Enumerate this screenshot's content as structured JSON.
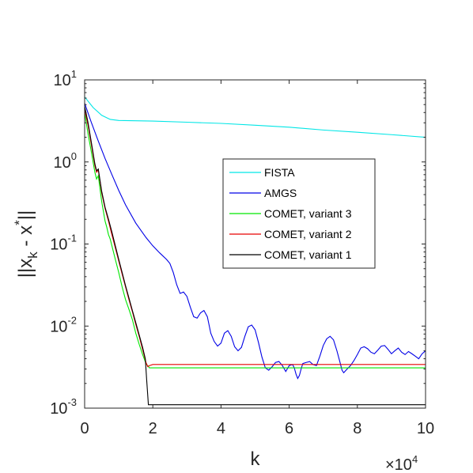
{
  "chart_data": {
    "type": "line",
    "title": "",
    "xlabel": "k",
    "ylabel": "||x_k - x^*||",
    "x_multiplier": "×10^4",
    "x_exponent": "4",
    "xlim": [
      0,
      100000
    ],
    "ylim": [
      0.001,
      10
    ],
    "yscale": "log",
    "x_ticks": [
      0,
      20000,
      40000,
      60000,
      80000,
      100000
    ],
    "x_tick_labels": [
      "0",
      "2",
      "4",
      "6",
      "8",
      "10"
    ],
    "y_ticks": [
      0.001,
      0.01,
      0.1,
      1,
      10
    ],
    "y_tick_labels": [
      {
        "base": "10",
        "exp": "-3"
      },
      {
        "base": "10",
        "exp": "-2"
      },
      {
        "base": "10",
        "exp": "-1"
      },
      {
        "base": "10",
        "exp": "0"
      },
      {
        "base": "10",
        "exp": "1"
      }
    ],
    "grid": false,
    "legend_position": "center-right",
    "series": [
      {
        "name": "FISTA",
        "color": "#00e6e6",
        "points": [
          [
            0,
            6.2
          ],
          [
            2500,
            4.6
          ],
          [
            5000,
            3.7
          ],
          [
            7500,
            3.3
          ],
          [
            10000,
            3.2
          ],
          [
            20000,
            3.15
          ],
          [
            30000,
            3.05
          ],
          [
            40000,
            2.95
          ],
          [
            50000,
            2.8
          ],
          [
            60000,
            2.65
          ],
          [
            70000,
            2.45
          ],
          [
            80000,
            2.3
          ],
          [
            90000,
            2.15
          ],
          [
            100000,
            2.0
          ]
        ]
      },
      {
        "name": "AMGS",
        "color": "#0000e6",
        "points": [
          [
            0,
            5.2
          ],
          [
            2000,
            3.0
          ],
          [
            4000,
            1.8
          ],
          [
            6000,
            1.1
          ],
          [
            8000,
            0.7
          ],
          [
            10000,
            0.45
          ],
          [
            12000,
            0.3
          ],
          [
            15000,
            0.18
          ],
          [
            18000,
            0.12
          ],
          [
            20000,
            0.095
          ],
          [
            22000,
            0.078
          ],
          [
            24000,
            0.065
          ],
          [
            25000,
            0.058
          ],
          [
            26000,
            0.045
          ],
          [
            27000,
            0.032
          ],
          [
            28000,
            0.025
          ],
          [
            29000,
            0.026
          ],
          [
            30000,
            0.023
          ],
          [
            31000,
            0.017
          ],
          [
            32000,
            0.013
          ],
          [
            33000,
            0.0125
          ],
          [
            34000,
            0.0145
          ],
          [
            35000,
            0.0155
          ],
          [
            36000,
            0.013
          ],
          [
            37000,
            0.0082
          ],
          [
            38000,
            0.0065
          ],
          [
            39000,
            0.0057
          ],
          [
            40000,
            0.0062
          ],
          [
            41000,
            0.0082
          ],
          [
            42000,
            0.0088
          ],
          [
            43000,
            0.0075
          ],
          [
            44000,
            0.0056
          ],
          [
            45000,
            0.005
          ],
          [
            46000,
            0.0055
          ],
          [
            47000,
            0.0075
          ],
          [
            48000,
            0.0098
          ],
          [
            49000,
            0.0103
          ],
          [
            50000,
            0.009
          ],
          [
            51000,
            0.0063
          ],
          [
            52000,
            0.0042
          ],
          [
            53000,
            0.0031
          ],
          [
            54000,
            0.0029
          ],
          [
            55000,
            0.0032
          ],
          [
            56000,
            0.0036
          ],
          [
            57000,
            0.0037
          ],
          [
            58000,
            0.0033
          ],
          [
            59000,
            0.0028
          ],
          [
            60000,
            0.0033
          ],
          [
            61000,
            0.0034
          ],
          [
            61500,
            0.0031
          ],
          [
            62000,
            0.0026
          ],
          [
            62500,
            0.0023
          ],
          [
            63000,
            0.0025
          ],
          [
            63500,
            0.003
          ],
          [
            64000,
            0.0035
          ],
          [
            65000,
            0.0036
          ],
          [
            66000,
            0.0037
          ],
          [
            67000,
            0.0034
          ],
          [
            68000,
            0.0033
          ],
          [
            69000,
            0.0043
          ],
          [
            70000,
            0.0058
          ],
          [
            71000,
            0.007
          ],
          [
            72000,
            0.0075
          ],
          [
            73000,
            0.0068
          ],
          [
            74000,
            0.005
          ],
          [
            75000,
            0.0035
          ],
          [
            75500,
            0.0029
          ],
          [
            76000,
            0.0027
          ],
          [
            77000,
            0.003
          ],
          [
            78000,
            0.0033
          ],
          [
            79000,
            0.0038
          ],
          [
            80000,
            0.0045
          ],
          [
            81000,
            0.0054
          ],
          [
            82000,
            0.0056
          ],
          [
            83000,
            0.0053
          ],
          [
            84000,
            0.0048
          ],
          [
            85000,
            0.0046
          ],
          [
            86000,
            0.0051
          ],
          [
            87000,
            0.0057
          ],
          [
            88000,
            0.0058
          ],
          [
            89000,
            0.0052
          ],
          [
            90000,
            0.0046
          ],
          [
            91000,
            0.005
          ],
          [
            92000,
            0.0054
          ],
          [
            93000,
            0.0048
          ],
          [
            94000,
            0.0045
          ],
          [
            95000,
            0.0049
          ],
          [
            96000,
            0.0046
          ],
          [
            97000,
            0.0043
          ],
          [
            98000,
            0.004
          ],
          [
            99000,
            0.0046
          ],
          [
            100000,
            0.005
          ]
        ]
      },
      {
        "name": "COMET, variant 3",
        "color": "#00e600",
        "points": [
          [
            0,
            4.0
          ],
          [
            1000,
            2.2
          ],
          [
            2000,
            1.3
          ],
          [
            3000,
            0.75
          ],
          [
            3500,
            0.62
          ],
          [
            4000,
            0.68
          ],
          [
            5000,
            0.33
          ],
          [
            6000,
            0.19
          ],
          [
            6500,
            0.16
          ],
          [
            7000,
            0.13
          ],
          [
            7500,
            0.115
          ],
          [
            8000,
            0.095
          ],
          [
            9000,
            0.065
          ],
          [
            10000,
            0.045
          ],
          [
            11000,
            0.03
          ],
          [
            12000,
            0.021
          ],
          [
            13000,
            0.016
          ],
          [
            14000,
            0.012
          ],
          [
            15000,
            0.0082
          ],
          [
            16000,
            0.006
          ],
          [
            17000,
            0.0045
          ],
          [
            18000,
            0.0035
          ],
          [
            19000,
            0.0031
          ],
          [
            100000,
            0.0031
          ]
        ]
      },
      {
        "name": "COMET, variant 2",
        "color": "#e60000",
        "points": [
          [
            0,
            4.4
          ],
          [
            1000,
            2.8
          ],
          [
            2000,
            1.6
          ],
          [
            3000,
            0.9
          ],
          [
            3500,
            0.75
          ],
          [
            4000,
            0.8
          ],
          [
            5000,
            0.42
          ],
          [
            6000,
            0.27
          ],
          [
            7000,
            0.19
          ],
          [
            8000,
            0.13
          ],
          [
            9000,
            0.09
          ],
          [
            10000,
            0.062
          ],
          [
            11000,
            0.043
          ],
          [
            12000,
            0.03
          ],
          [
            13000,
            0.021
          ],
          [
            14000,
            0.015
          ],
          [
            15000,
            0.0105
          ],
          [
            16000,
            0.0075
          ],
          [
            17000,
            0.0052
          ],
          [
            18000,
            0.0036
          ],
          [
            18500,
            0.0032
          ],
          [
            19000,
            0.0033
          ],
          [
            20000,
            0.0034
          ],
          [
            100000,
            0.0034
          ]
        ]
      },
      {
        "name": "COMET, variant 1",
        "color": "#000000",
        "points": [
          [
            0,
            4.8
          ],
          [
            1000,
            3.0
          ],
          [
            2000,
            1.7
          ],
          [
            3000,
            0.95
          ],
          [
            3500,
            0.78
          ],
          [
            4000,
            0.82
          ],
          [
            5000,
            0.44
          ],
          [
            6000,
            0.28
          ],
          [
            7000,
            0.2
          ],
          [
            8000,
            0.14
          ],
          [
            9000,
            0.095
          ],
          [
            10000,
            0.065
          ],
          [
            11000,
            0.045
          ],
          [
            12000,
            0.031
          ],
          [
            13000,
            0.022
          ],
          [
            14000,
            0.0155
          ],
          [
            15000,
            0.011
          ],
          [
            16000,
            0.0078
          ],
          [
            17000,
            0.0055
          ],
          [
            17800,
            0.004
          ],
          [
            18200,
            0.0022
          ],
          [
            18700,
            0.0011
          ],
          [
            100000,
            0.0011
          ]
        ]
      }
    ]
  }
}
